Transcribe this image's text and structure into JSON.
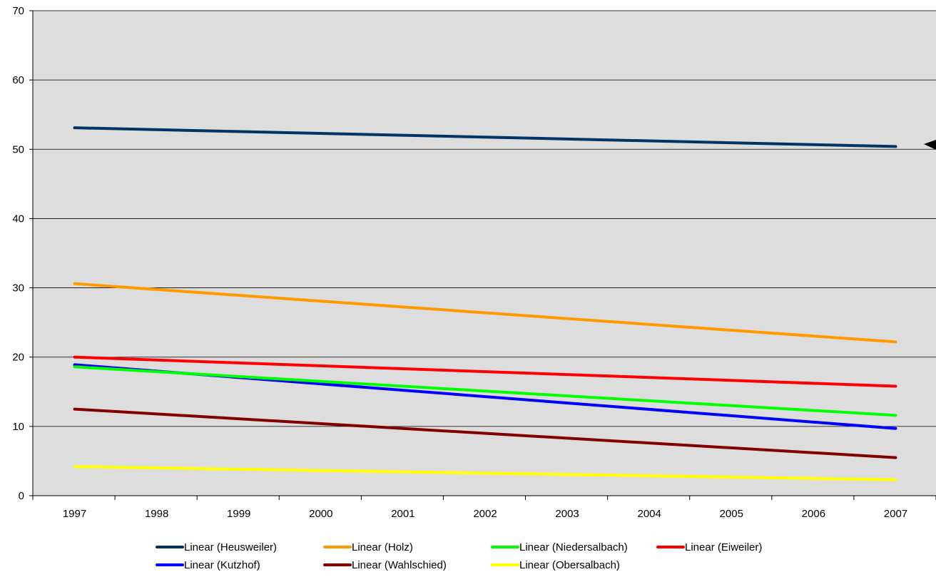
{
  "chart_data": {
    "type": "line",
    "title": "",
    "xlabel": "",
    "ylabel": "",
    "x": [
      "1997",
      "1998",
      "1999",
      "2000",
      "2001",
      "2002",
      "2003",
      "2004",
      "2005",
      "2006",
      "2007"
    ],
    "ylim": [
      0,
      70
    ],
    "yticks": [
      "0",
      "10",
      "20",
      "30",
      "40",
      "50",
      "60",
      "70"
    ],
    "grid": true,
    "legend_position": "bottom",
    "plot_background": "#DDDDDD",
    "series": [
      {
        "name": "Linear (Heusweiler)",
        "color": "#003366",
        "start": 53.1,
        "end": 50.4
      },
      {
        "name": "Linear (Holz)",
        "color": "#FF9900",
        "start": 30.6,
        "end": 22.2
      },
      {
        "name": "Linear (Niedersalbach)",
        "color": "#00FF00",
        "start": 18.6,
        "end": 11.6
      },
      {
        "name": "Linear (Eiweiler)",
        "color": "#FF0000",
        "start": 20.0,
        "end": 15.8
      },
      {
        "name": "Linear (Kutzhof)",
        "color": "#0000FF",
        "start": 18.9,
        "end": 9.7
      },
      {
        "name": "Linear (Wahlschied)",
        "color": "#800000",
        "start": 12.5,
        "end": 5.5
      },
      {
        "name": "Linear (Obersalbach)",
        "color": "#FFFF00",
        "start": 4.2,
        "end": 2.3
      }
    ]
  }
}
